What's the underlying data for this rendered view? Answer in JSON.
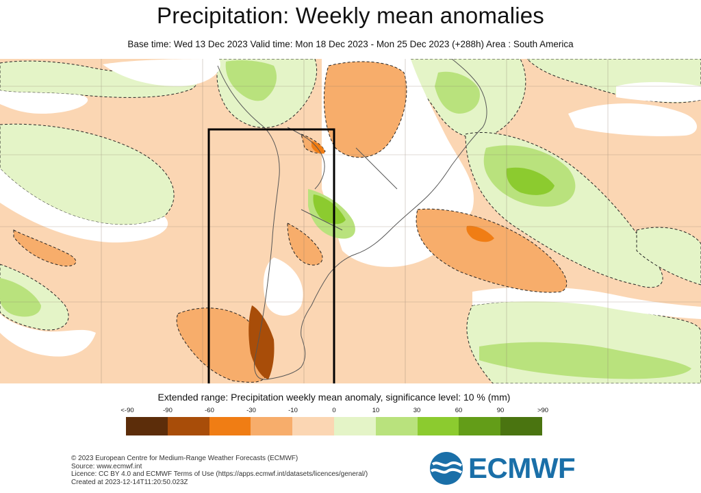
{
  "title": "Precipitation: Weekly mean anomalies",
  "subtitle": "Base time: Wed 13 Dec 2023 Valid time: Mon 18 Dec 2023 - Mon 25 Dec 2023 (+288h) Area : South America",
  "legend": {
    "title": "Extended range: Precipitation weekly mean anomaly, significance level: 10 % (mm)",
    "ticks": [
      "<-90",
      "-90",
      "-60",
      "-30",
      "-10",
      "0",
      "10",
      "30",
      "60",
      "90",
      ">90"
    ],
    "colors": [
      "#5c2d0a",
      "#a84d09",
      "#f07d14",
      "#f7ad6b",
      "#fbd6b3",
      "#e4f4c7",
      "#b9e27d",
      "#8ccb2f",
      "#639d18",
      "#4a7410"
    ]
  },
  "credits": [
    "© 2023 European Centre for Medium-Range Weather Forecasts (ECMWF)",
    "Source: www.ecmwf.int",
    "Licence: CC BY 4.0 and ECMWF Terms of Use (https://apps.ecmwf.int/datasets/licences/general/)",
    "Created at 2023-12-14T11:20:50.023Z"
  ],
  "logo": {
    "text": "ECMWF",
    "color": "#1a6fa8"
  },
  "map": {
    "background": "#fbd6b3",
    "highlight_box": "black rectangle over southern South America"
  }
}
